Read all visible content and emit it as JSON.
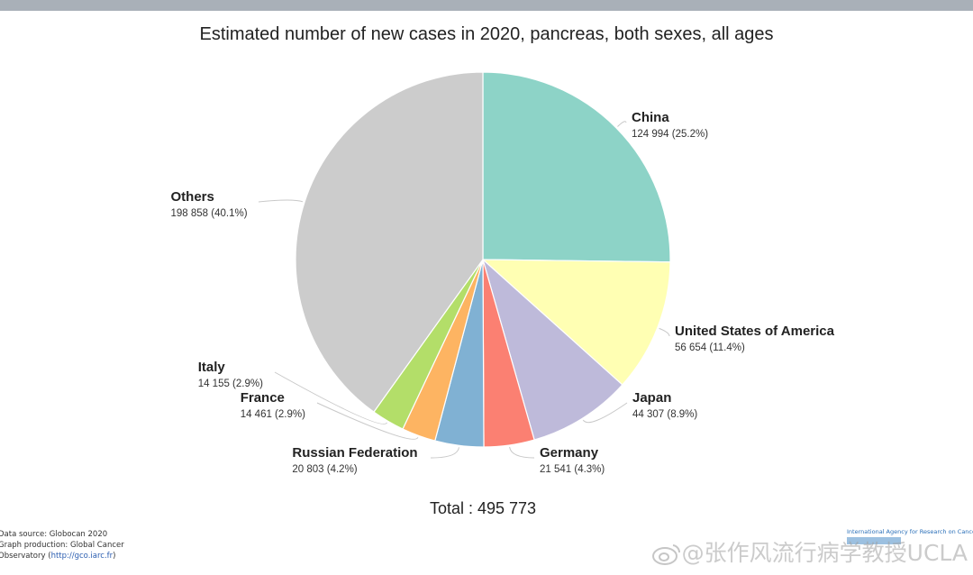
{
  "chart_data": {
    "type": "pie",
    "title": "Estimated number of new cases in 2020, pancreas, both sexes, all ages",
    "slices": [
      {
        "name": "China",
        "value": 124994,
        "value_label": "124 994 (25.2%)",
        "percent": 25.2,
        "color": "#8dd3c7"
      },
      {
        "name": "United States of America",
        "value": 56654,
        "value_label": "56 654 (11.4%)",
        "percent": 11.4,
        "color": "#ffffb3"
      },
      {
        "name": "Japan",
        "value": 44307,
        "value_label": "44 307 (8.9%)",
        "percent": 8.9,
        "color": "#bebada"
      },
      {
        "name": "Germany",
        "value": 21541,
        "value_label": "21 541 (4.3%)",
        "percent": 4.3,
        "color": "#fb8072"
      },
      {
        "name": "Russian Federation",
        "value": 20803,
        "value_label": "20 803 (4.2%)",
        "percent": 4.2,
        "color": "#80b1d3"
      },
      {
        "name": "France",
        "value": 14461,
        "value_label": "14 461 (2.9%)",
        "percent": 2.9,
        "color": "#fdb462"
      },
      {
        "name": "Italy",
        "value": 14155,
        "value_label": "14 155 (2.9%)",
        "percent": 2.9,
        "color": "#b3de69"
      },
      {
        "name": "Others",
        "value": 198858,
        "value_label": "198 858 (40.1%)",
        "percent": 40.1,
        "color": "#cccccc"
      }
    ],
    "total_label": "Total : 495 773"
  },
  "footer": {
    "source_line1": "Data source: Globocan 2020",
    "source_line2": "Graph production: Global Cancer",
    "source_line3_prefix": "Observatory (",
    "source_link": "http://gco.iarc.fr",
    "source_line3_suffix": ")",
    "iarc_text": "International Agency for Research on Cancer",
    "watermark": "@张作风流行病学教授UCLA"
  }
}
